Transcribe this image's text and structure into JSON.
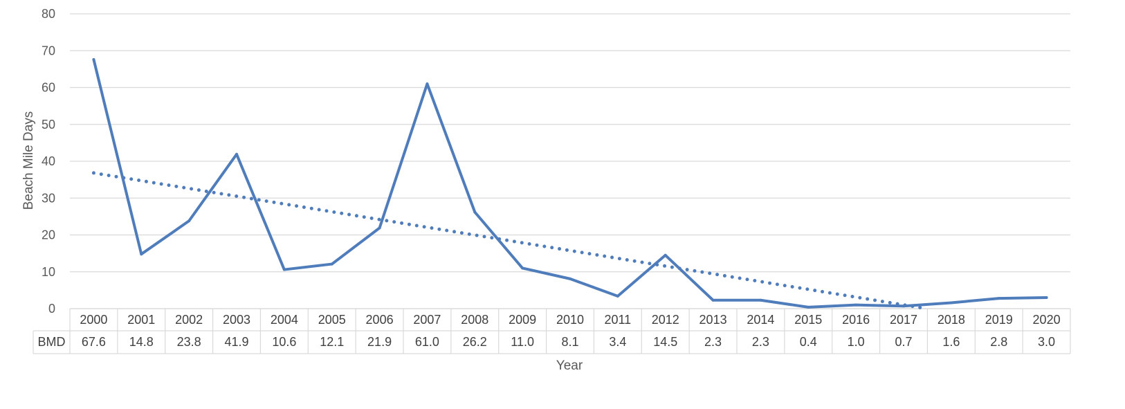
{
  "chart_data": {
    "type": "line",
    "xlabel": "Year",
    "ylabel": "Beach Mile Days",
    "ylim": [
      0,
      80
    ],
    "yticks": [
      "0",
      "10",
      "20",
      "30",
      "40",
      "50",
      "60",
      "70",
      "80"
    ],
    "grid": true,
    "categories": [
      "2000",
      "2001",
      "2002",
      "2003",
      "2004",
      "2005",
      "2006",
      "2007",
      "2008",
      "2009",
      "2010",
      "2011",
      "2012",
      "2013",
      "2014",
      "2015",
      "2016",
      "2017",
      "2018",
      "2019",
      "2020"
    ],
    "series": [
      {
        "name": "BMD",
        "values": [
          67.6,
          14.8,
          23.8,
          41.9,
          10.6,
          12.1,
          21.9,
          61.0,
          26.2,
          11.0,
          8.1,
          3.4,
          14.5,
          2.3,
          2.3,
          0.4,
          1.0,
          0.7,
          1.6,
          2.8,
          3.0
        ],
        "labels": [
          "67.6",
          "14.8",
          "23.8",
          "41.9",
          "10.6",
          "12.1",
          "21.9",
          "61.0",
          "26.2",
          "11.0",
          "8.1",
          "3.4",
          "14.5",
          "2.3",
          "2.3",
          "0.4",
          "1.0",
          "0.7",
          "1.6",
          "2.8",
          "3.0"
        ],
        "color": "#4F7CBA"
      }
    ],
    "trendline": {
      "type": "linear",
      "style": "dotted",
      "color": "#4F7CBA"
    },
    "data_table": true,
    "gridline_color": "#D9D9D9"
  }
}
